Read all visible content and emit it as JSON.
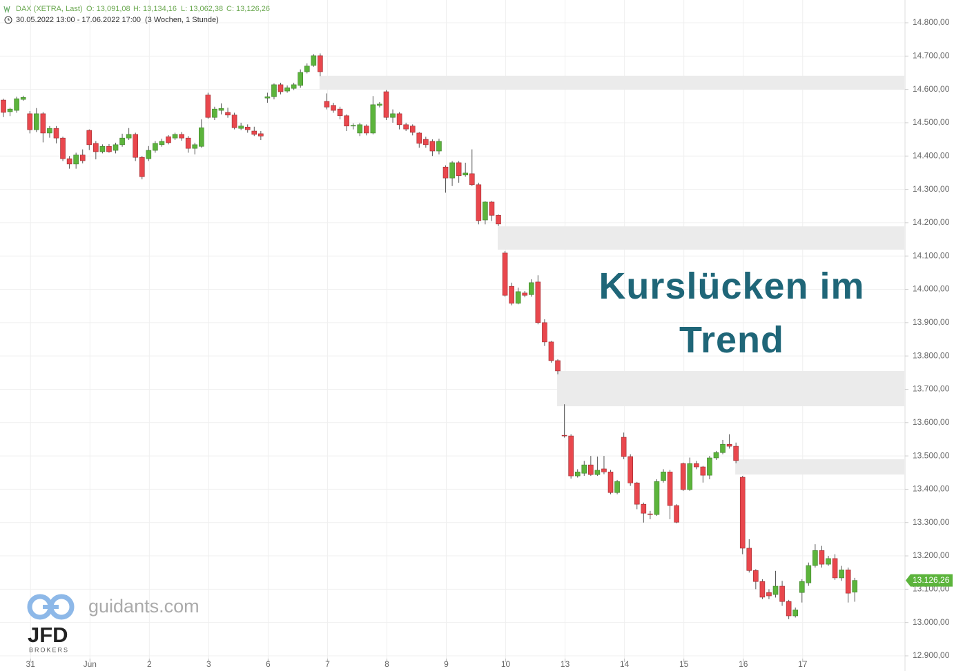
{
  "chart_data": {
    "type": "candlestick",
    "instrument": "DAX (XETRA, Last)",
    "ohlc_text": [
      "O: 13,091,08",
      "H: 13,134,16",
      "L: 13,062,38",
      "C: 13,126,26"
    ],
    "period": "30.05.2022 13:00 - 17.06.2022 17:00",
    "interval": "(3 Wochen, 1 Stunde)",
    "annotation": "Kurslücken im Trend",
    "last_label": "13.126,26",
    "up_color": "#5cb43c",
    "down_color": "#e9474d",
    "gap_color": "#ebebeb",
    "grid": true,
    "categories": [
      null,
      null,
      null,
      null,
      "31",
      null,
      null,
      null,
      null,
      null,
      null,
      null,
      null,
      "Jun",
      null,
      null,
      null,
      null,
      null,
      null,
      null,
      null,
      "2",
      null,
      null,
      null,
      null,
      null,
      null,
      null,
      null,
      "3",
      null,
      null,
      null,
      null,
      null,
      null,
      null,
      null,
      "6",
      null,
      null,
      null,
      null,
      null,
      null,
      null,
      null,
      "7",
      null,
      null,
      null,
      null,
      null,
      null,
      null,
      null,
      "8",
      null,
      null,
      null,
      null,
      null,
      null,
      null,
      null,
      "9",
      null,
      null,
      null,
      null,
      null,
      null,
      null,
      null,
      "10",
      null,
      null,
      null,
      null,
      null,
      null,
      null,
      null,
      "13",
      null,
      null,
      null,
      null,
      null,
      null,
      null,
      null,
      "14",
      null,
      null,
      null,
      null,
      null,
      null,
      null,
      null,
      "15",
      null,
      null,
      null,
      null,
      null,
      null,
      null,
      null,
      "16",
      null,
      null,
      null,
      null,
      null,
      null,
      null,
      null,
      "17",
      null,
      null,
      null,
      null,
      null,
      null,
      null,
      null
    ],
    "open": [
      14568,
      14533,
      14537,
      14570,
      14527,
      14479,
      14527,
      14469,
      14483,
      14454,
      14392,
      14376,
      14403,
      14477,
      14438,
      14413,
      14429,
      14417,
      14434,
      14454,
      14465,
      14396,
      14392,
      14417,
      14434,
      14458,
      14454,
      14465,
      14454,
      14423,
      14429,
      14583,
      14516,
      14537,
      14531,
      14523,
      14483,
      14487,
      14475,
      14467,
      14574,
      14578,
      14614,
      14595,
      14603,
      14612,
      14653,
      14672,
      14701,
      14564,
      14552,
      14541,
      14521,
      14490,
      14469,
      14490,
      14469,
      14552,
      14593,
      14516,
      14527,
      14494,
      14490,
      14469,
      14450,
      14444,
      14415,
      14367,
      14334,
      14380,
      14343,
      14347,
      14314,
      14208,
      14262,
      14222,
      14109,
      14009,
      13958,
      13989,
      13984,
      14022,
      13900,
      13842,
      13786,
      13562,
      13560,
      13440,
      13448,
      13473,
      13444,
      13461,
      13452,
      13390,
      13556,
      13498,
      13419,
      13355,
      13326,
      13324,
      13426,
      13452,
      13351,
      13477,
      13399,
      13477,
      13467,
      13442,
      13494,
      13510,
      13535,
      13529,
      13436,
      13223,
      13156,
      13123,
      13090,
      13084,
      13109,
      13063,
      13020,
      13090,
      13119,
      13171,
      13216,
      13175,
      13192,
      13134,
      13158,
      13091.08
    ],
    "high": [
      14572,
      14545,
      14578,
      14581,
      14535,
      14544,
      14532,
      14490,
      14490,
      14458,
      14400,
      14410,
      14420,
      14480,
      14445,
      14435,
      14436,
      14440,
      14467,
      14484,
      14470,
      14400,
      14430,
      14445,
      14452,
      14463,
      14470,
      14472,
      14460,
      14440,
      14510,
      14590,
      14548,
      14558,
      14545,
      14530,
      14500,
      14495,
      14488,
      14475,
      14590,
      14618,
      14620,
      14612,
      14620,
      14660,
      14678,
      14706,
      14708,
      14588,
      14560,
      14548,
      14525,
      14498,
      14500,
      14495,
      14580,
      14562,
      14598,
      14540,
      14532,
      14500,
      14495,
      14472,
      14458,
      14450,
      14452,
      14372,
      14385,
      14385,
      14380,
      14420,
      14320,
      14264,
      14265,
      14225,
      14115,
      14020,
      14005,
      13995,
      14030,
      14042,
      13910,
      13845,
      13790,
      13655,
      13565,
      13460,
      13485,
      13500,
      13498,
      13500,
      13458,
      13428,
      13570,
      13505,
      13422,
      13360,
      13335,
      13430,
      13460,
      13458,
      13355,
      13480,
      13495,
      13485,
      13470,
      13500,
      13515,
      13548,
      13565,
      13540,
      13440,
      13250,
      13160,
      13130,
      13100,
      13155,
      13125,
      13068,
      13045,
      13130,
      13180,
      13235,
      13230,
      13200,
      13205,
      13170,
      13165,
      13134.16
    ],
    "low": [
      14517,
      14520,
      14530,
      14566,
      14468,
      14472,
      14441,
      14455,
      14438,
      14385,
      14362,
      14362,
      14378,
      14418,
      14390,
      14408,
      14410,
      14408,
      14428,
      14448,
      14385,
      14330,
      14385,
      14410,
      14428,
      14435,
      14448,
      14446,
      14410,
      14405,
      14425,
      14512,
      14508,
      14525,
      14515,
      14480,
      14478,
      14470,
      14460,
      14448,
      14560,
      14570,
      14585,
      14590,
      14598,
      14605,
      14648,
      14668,
      14640,
      14540,
      14530,
      14510,
      14475,
      14480,
      14460,
      14462,
      14465,
      14546,
      14508,
      14500,
      14480,
      14475,
      14462,
      14425,
      14425,
      14400,
      14405,
      14290,
      14310,
      14320,
      14338,
      14310,
      14195,
      14195,
      14205,
      14190,
      13978,
      13952,
      13955,
      13976,
      13978,
      13895,
      13830,
      13780,
      13745,
      13555,
      13432,
      13435,
      13440,
      13440,
      13440,
      13445,
      13385,
      13385,
      13490,
      13410,
      13340,
      13300,
      13310,
      13320,
      13420,
      13310,
      13298,
      13395,
      13395,
      13460,
      13420,
      13430,
      13488,
      13505,
      13522,
      13478,
      13205,
      13150,
      13100,
      13070,
      13070,
      13075,
      13050,
      13010,
      13015,
      13060,
      13110,
      13165,
      13165,
      13170,
      13128,
      13125,
      13060,
      13062.38
    ],
    "close": [
      14531,
      14541,
      14572,
      14576,
      14479,
      14527,
      14469,
      14483,
      14454,
      14392,
      14376,
      14403,
      14386,
      14434,
      14413,
      14429,
      14413,
      14434,
      14454,
      14465,
      14396,
      14338,
      14417,
      14438,
      14444,
      14440,
      14465,
      14454,
      14423,
      14434,
      14485,
      14516,
      14541,
      14543,
      14523,
      14485,
      14490,
      14479,
      14465,
      14460,
      14578,
      14614,
      14593,
      14605,
      14614,
      14651,
      14670,
      14701,
      14653,
      14547,
      14537,
      14521,
      14490,
      14492,
      14494,
      14469,
      14554,
      14556,
      14516,
      14527,
      14494,
      14481,
      14471,
      14438,
      14434,
      14415,
      14444,
      14334,
      14380,
      14341,
      14349,
      14314,
      14206,
      14262,
      14222,
      14196,
      13982,
      13958,
      13993,
      13982,
      14020,
      13900,
      13842,
      13786,
      13755,
      13560,
      13440,
      13452,
      13473,
      13444,
      13457,
      13452,
      13390,
      13423,
      13498,
      13419,
      13355,
      13328,
      13324,
      13423,
      13452,
      13351,
      13301,
      13399,
      13477,
      13467,
      13442,
      13494,
      13510,
      13535,
      13529,
      13486,
      13223,
      13156,
      13123,
      13076,
      13080,
      13109,
      13063,
      13020,
      13038,
      13123,
      13171,
      13216,
      13175,
      13192,
      13134,
      13158,
      13088,
      13126.26
    ],
    "gaps": [
      {
        "start": 48,
        "low": 14599,
        "high": 14641
      },
      {
        "start": 75,
        "low": 14119,
        "high": 14189
      },
      {
        "start": 84,
        "low": 13649,
        "high": 13755
      },
      {
        "start": 111,
        "low": 13444,
        "high": 13490
      }
    ],
    "ylim": [
      12900,
      14800
    ],
    "yticks": [
      {
        "value": 12900,
        "label": "12.900,00"
      },
      {
        "value": 13000,
        "label": "13.000,00"
      },
      {
        "value": 13100,
        "label": "13.100,00"
      },
      {
        "value": 13200,
        "label": "13.200,00"
      },
      {
        "value": 13300,
        "label": "13.300,00"
      },
      {
        "value": 13400,
        "label": "13.400,00"
      },
      {
        "value": 13500,
        "label": "13.500,00"
      },
      {
        "value": 13600,
        "label": "13.600,00"
      },
      {
        "value": 13700,
        "label": "13.700,00"
      },
      {
        "value": 13800,
        "label": "13.800,00"
      },
      {
        "value": 13900,
        "label": "13.900,00"
      },
      {
        "value": 14000,
        "label": "14.000,00"
      },
      {
        "value": 14100,
        "label": "14.100,00"
      },
      {
        "value": 14200,
        "label": "14.200,00"
      },
      {
        "value": 14300,
        "label": "14.300,00"
      },
      {
        "value": 14400,
        "label": "14.400,00"
      },
      {
        "value": 14500,
        "label": "14.500,00"
      },
      {
        "value": 14600,
        "label": "14.600,00"
      },
      {
        "value": 14700,
        "label": "14.700,00"
      },
      {
        "value": 14800,
        "label": "14.800,00"
      }
    ]
  },
  "branding": {
    "site": "guidants.com",
    "broker": "JFD",
    "broker_sub": "BROKERS"
  }
}
